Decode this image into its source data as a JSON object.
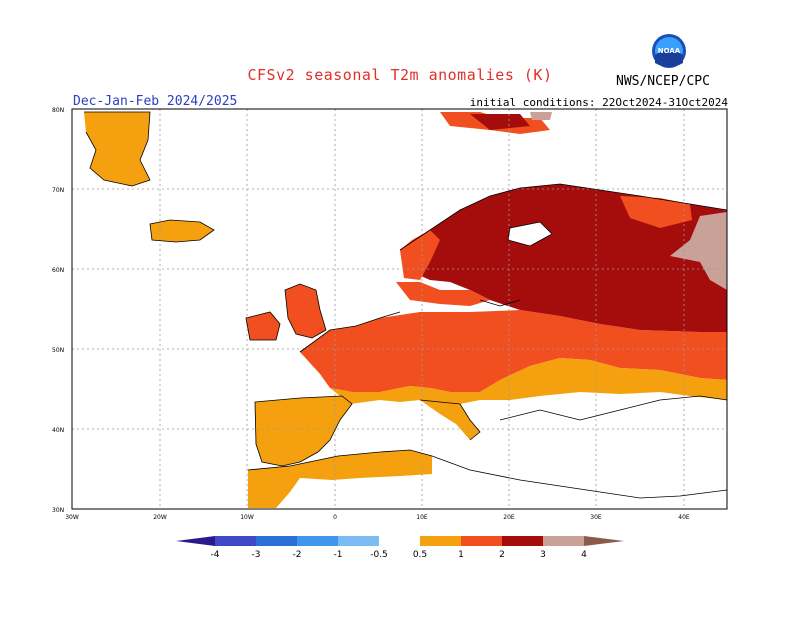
{
  "header": {
    "title": "CFSv2 seasonal T2m anomalies (K)",
    "subtitle": "Dec-Jan-Feb 2024/2025",
    "initial_conditions": "initial conditions: 22Oct2024-31Oct2024",
    "agency": "NWS/NCEP/CPC",
    "logo_text": "NOAA"
  },
  "map": {
    "region": "Europe",
    "lat_labels": [
      "80N",
      "70N",
      "60N",
      "50N",
      "40N",
      "30N"
    ],
    "lon_labels": [
      "30W",
      "20W",
      "10W",
      "0",
      "10E",
      "20E",
      "30E",
      "40E"
    ],
    "lon_range": [
      -30,
      45
    ],
    "lat_range": [
      30,
      80
    ],
    "grid": true
  },
  "legend": {
    "labels": [
      "-4",
      "-3",
      "-2",
      "-1",
      "-0.5",
      "0.5",
      "1",
      "2",
      "3",
      "4"
    ],
    "colors": {
      "below_-4": "#2b1a8c",
      "-4_-3": "#3f48c8",
      "-3_-2": "#2a6fd6",
      "-2_-1": "#3f96ec",
      "-1_-0.5": "#7bbcf4",
      "-0.5_0.5": "#ffffff",
      "0.5_1": "#f5a10f",
      "1_2": "#f14f1f",
      "2_3": "#a50d0d",
      "3_4": "#c9a196",
      "above_4": "#8b5a4b"
    }
  }
}
